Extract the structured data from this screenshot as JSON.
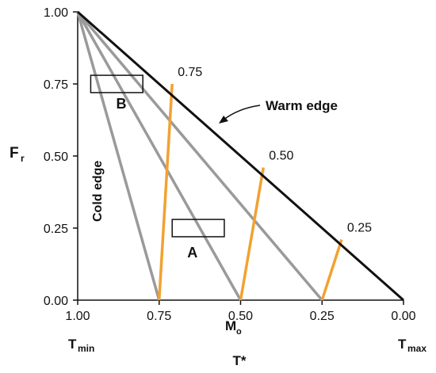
{
  "chart_data": {
    "type": "line",
    "xlabel": "T*",
    "ylabel": "F",
    "ylabel_sub": "r",
    "xlim": [
      1.0,
      0.0
    ],
    "ylim": [
      0.0,
      1.0
    ],
    "x_ticks": [
      "1.00",
      "0.75",
      "0.50",
      "0.25",
      "0.00"
    ],
    "y_ticks": [
      "0.00",
      "0.25",
      "0.50",
      "0.75",
      "1.00"
    ],
    "x_end_labels": {
      "left": "T",
      "left_sub": "min",
      "right": "T",
      "right_sub": "max"
    },
    "mo_label": "M",
    "mo_label_sub": "o",
    "gray_lines": [
      {
        "from": [
          1.0,
          1.0
        ],
        "to": [
          0.75,
          0.0
        ]
      },
      {
        "from": [
          1.0,
          1.0
        ],
        "to": [
          0.5,
          0.0
        ]
      },
      {
        "from": [
          1.0,
          1.0
        ],
        "to": [
          0.25,
          0.0
        ]
      }
    ],
    "edge_line": {
      "from": [
        1.0,
        1.0
      ],
      "to": [
        0.0,
        0.0
      ],
      "label": "Warm edge"
    },
    "cold_edge_label": "Cold edge",
    "orange_lines": [
      {
        "from": [
          0.75,
          0.0
        ],
        "to": [
          0.71,
          0.75
        ],
        "label": "0.75"
      },
      {
        "from": [
          0.5,
          0.0
        ],
        "to": [
          0.43,
          0.46
        ],
        "label": "0.50"
      },
      {
        "from": [
          0.25,
          0.0
        ],
        "to": [
          0.19,
          0.21
        ],
        "label": "0.25"
      }
    ],
    "boxes": [
      {
        "label": "B",
        "x": [
          0.96,
          0.8
        ],
        "y": [
          0.72,
          0.78
        ]
      },
      {
        "label": "A",
        "x": [
          0.71,
          0.55
        ],
        "y": [
          0.22,
          0.28
        ]
      }
    ],
    "colors": {
      "gray": "#9a9a9a",
      "orange": "#f2a132",
      "edge": "#111111"
    }
  }
}
